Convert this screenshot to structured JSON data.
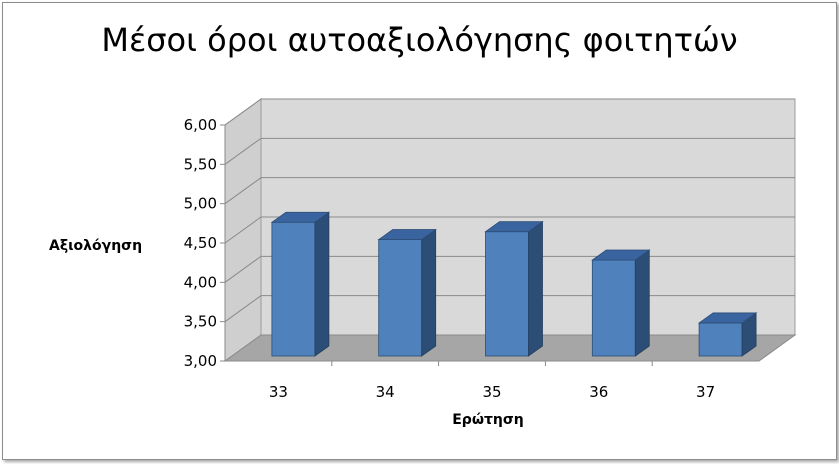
{
  "chart_data": {
    "type": "bar",
    "title": "Μέσοι όροι αυτοαξιολόγησης φοιτητών",
    "xlabel": "Ερώτηση",
    "ylabel": "Αξιολόγηση",
    "categories": [
      "33",
      "34",
      "35",
      "36",
      "37"
    ],
    "values": [
      4.7,
      4.48,
      4.58,
      4.22,
      3.42
    ],
    "ylim": [
      3.0,
      6.0
    ],
    "yticks": [
      "3,00",
      "3,50",
      "4,00",
      "4,50",
      "5,00",
      "5,50",
      "6,00"
    ],
    "grid": true,
    "legend": "none",
    "colors": {
      "bar_front": "#4f81bd",
      "bar_side": "#2c4d75",
      "bar_top": "#3a64a0",
      "wall": "#d9d9d9",
      "floor": "#a6a6a6"
    }
  }
}
